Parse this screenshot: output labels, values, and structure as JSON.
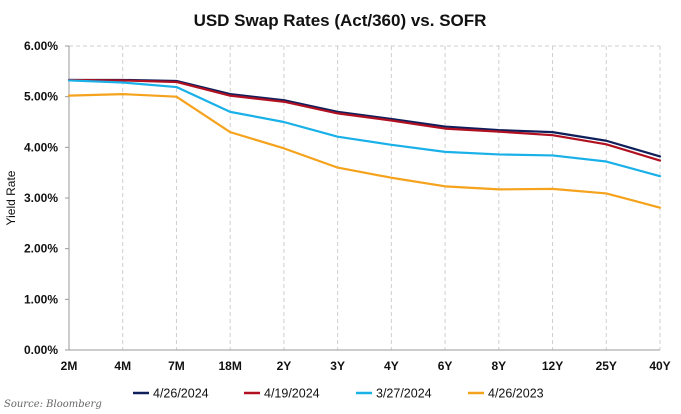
{
  "chart_data": {
    "type": "line",
    "title": "USD Swap Rates (Act/360) vs. SOFR",
    "xlabel": "",
    "ylabel": "Yield Rate",
    "categories": [
      "2M",
      "4M",
      "7M",
      "18M",
      "2Y",
      "3Y",
      "4Y",
      "6Y",
      "8Y",
      "12Y",
      "25Y",
      "40Y"
    ],
    "ylim": [
      0,
      6
    ],
    "yticks": [
      "0.00%",
      "1.00%",
      "2.00%",
      "3.00%",
      "4.00%",
      "5.00%",
      "6.00%"
    ],
    "grid": "vertical-dashed",
    "legend_position": "bottom",
    "series": [
      {
        "name": "4/26/2024",
        "color": "#0f1f5c",
        "values": [
          5.33,
          5.33,
          5.31,
          5.05,
          4.93,
          4.7,
          4.56,
          4.41,
          4.34,
          4.3,
          4.13,
          3.82
        ]
      },
      {
        "name": "4/19/2024",
        "color": "#b01020",
        "values": [
          5.33,
          5.32,
          5.29,
          5.02,
          4.9,
          4.67,
          4.53,
          4.37,
          4.31,
          4.24,
          4.06,
          3.74
        ]
      },
      {
        "name": "3/27/2024",
        "color": "#1ab0e8",
        "values": [
          5.32,
          5.28,
          5.19,
          4.7,
          4.5,
          4.21,
          4.05,
          3.91,
          3.86,
          3.84,
          3.72,
          3.43
        ]
      },
      {
        "name": "4/26/2023",
        "color": "#f5a21c",
        "values": [
          5.02,
          5.05,
          5.0,
          4.3,
          3.98,
          3.6,
          3.4,
          3.23,
          3.17,
          3.18,
          3.09,
          2.81
        ]
      }
    ]
  },
  "source": "Source: Bloomberg"
}
